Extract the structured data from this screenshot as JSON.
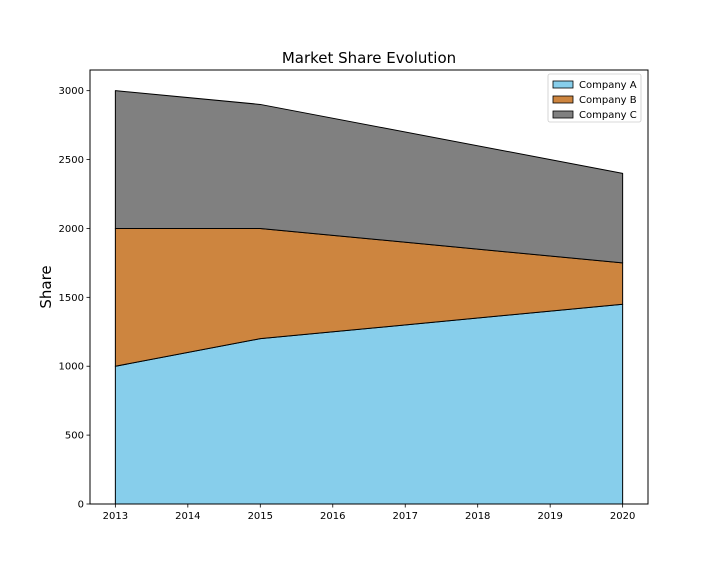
{
  "chart_data": {
    "type": "area",
    "stacked": true,
    "title": "Market Share Evolution",
    "xlabel": "",
    "ylabel": "Share",
    "x": [
      2013,
      2015,
      2020
    ],
    "xticks": [
      "2013",
      "2014",
      "2015",
      "2016",
      "2017",
      "2018",
      "2019",
      "2020"
    ],
    "xlim": [
      2012.65,
      2020.35
    ],
    "ylim": [
      0,
      3150
    ],
    "yticks": [
      0,
      500,
      1000,
      1500,
      2000,
      2500,
      3000
    ],
    "grid": false,
    "legend_position": "top-right",
    "series": [
      {
        "name": "Company A",
        "values": [
          1000,
          1200,
          1450
        ],
        "color": "#87CEEB"
      },
      {
        "name": "Company B",
        "values": [
          1000,
          800,
          300
        ],
        "color": "#CD853F"
      },
      {
        "name": "Company C",
        "values": [
          1000,
          900,
          650
        ],
        "color": "#808080"
      }
    ]
  }
}
